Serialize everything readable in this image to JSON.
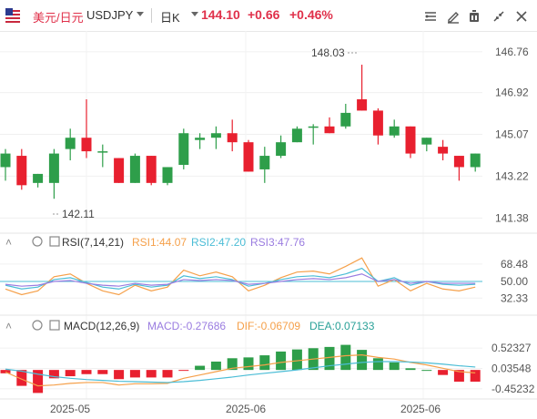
{
  "header": {
    "pair_cn": "美元/日元",
    "pair_code": "USDJPY",
    "timeframe": "日K",
    "price": "144.10",
    "change": "+0.66",
    "change_pct": "+0.46%"
  },
  "toolbar": {
    "icons": [
      "indicator-toggle-icon",
      "draw-icon",
      "timer-icon",
      "settings-icon",
      "collapse-icon",
      "close-icon"
    ]
  },
  "chart_data": [
    {
      "type": "candlestick",
      "title": "USDJPY 日K",
      "price_axis_labels": [
        "146.76",
        "146.92",
        "145.07",
        "143.22",
        "141.38"
      ],
      "annotations": [
        "148.03",
        "142.11"
      ],
      "x_tick_labels": [
        "2025-05",
        "2025-06",
        "2025-06"
      ],
      "ylim": [
        140.9,
        149.2
      ],
      "candles": [
        {
          "o": 143.5,
          "h": 144.3,
          "l": 142.9,
          "c": 144.1
        },
        {
          "o": 144.0,
          "h": 144.3,
          "l": 142.5,
          "c": 142.7
        },
        {
          "o": 142.8,
          "h": 143.2,
          "l": 142.6,
          "c": 143.2
        },
        {
          "o": 142.8,
          "h": 144.3,
          "l": 142.1,
          "c": 144.1
        },
        {
          "o": 144.3,
          "h": 145.2,
          "l": 143.8,
          "c": 144.8
        },
        {
          "o": 144.8,
          "h": 146.5,
          "l": 143.9,
          "c": 144.2
        },
        {
          "o": 144.2,
          "h": 144.5,
          "l": 143.5,
          "c": 144.2
        },
        {
          "o": 143.9,
          "h": 143.9,
          "l": 142.8,
          "c": 142.8
        },
        {
          "o": 142.8,
          "h": 144.1,
          "l": 142.8,
          "c": 144.0
        },
        {
          "o": 144.0,
          "h": 144.0,
          "l": 142.7,
          "c": 142.8
        },
        {
          "o": 142.8,
          "h": 143.5,
          "l": 142.7,
          "c": 143.5
        },
        {
          "o": 143.6,
          "h": 145.2,
          "l": 143.4,
          "c": 145.0
        },
        {
          "o": 144.7,
          "h": 145.0,
          "l": 144.3,
          "c": 144.8
        },
        {
          "o": 144.8,
          "h": 145.3,
          "l": 144.3,
          "c": 145.0
        },
        {
          "o": 145.0,
          "h": 145.6,
          "l": 144.2,
          "c": 144.6
        },
        {
          "o": 144.6,
          "h": 144.7,
          "l": 143.3,
          "c": 143.3
        },
        {
          "o": 143.4,
          "h": 144.4,
          "l": 142.8,
          "c": 144.0
        },
        {
          "o": 144.0,
          "h": 144.9,
          "l": 143.9,
          "c": 144.6
        },
        {
          "o": 144.6,
          "h": 145.3,
          "l": 144.6,
          "c": 145.2
        },
        {
          "o": 145.3,
          "h": 145.4,
          "l": 144.5,
          "c": 145.3
        },
        {
          "o": 145.3,
          "h": 145.7,
          "l": 145.0,
          "c": 145.0
        },
        {
          "o": 145.3,
          "h": 146.3,
          "l": 145.2,
          "c": 145.9
        },
        {
          "o": 146.5,
          "h": 148.03,
          "l": 146.0,
          "c": 146.0
        },
        {
          "o": 146.0,
          "h": 146.1,
          "l": 144.5,
          "c": 144.9
        },
        {
          "o": 144.9,
          "h": 145.6,
          "l": 144.8,
          "c": 145.3
        },
        {
          "o": 145.3,
          "h": 145.3,
          "l": 143.9,
          "c": 144.1
        },
        {
          "o": 144.5,
          "h": 144.8,
          "l": 144.2,
          "c": 144.8
        },
        {
          "o": 144.4,
          "h": 144.7,
          "l": 143.8,
          "c": 144.1
        },
        {
          "o": 144.0,
          "h": 144.0,
          "l": 142.9,
          "c": 143.5
        },
        {
          "o": 143.5,
          "h": 144.1,
          "l": 143.3,
          "c": 144.1
        }
      ]
    },
    {
      "type": "line",
      "title": "RSI(7,14,21)",
      "legend": [
        "RSI1:44.07",
        "RSI2:47.20",
        "RSI3:47.76"
      ],
      "axis_labels": [
        "68.48",
        "50.00",
        "32.33"
      ],
      "ylim": [
        20,
        80
      ],
      "series": [
        {
          "name": "RSI1",
          "color": "#f5a04a",
          "values": [
            42,
            36,
            40,
            55,
            58,
            48,
            40,
            36,
            46,
            40,
            44,
            62,
            56,
            60,
            55,
            40,
            46,
            54,
            60,
            61,
            58,
            66,
            75,
            45,
            52,
            40,
            48,
            42,
            40,
            44
          ]
        },
        {
          "name": "RSI2",
          "color": "#4bbdd6",
          "values": [
            46,
            42,
            44,
            52,
            54,
            49,
            44,
            42,
            47,
            44,
            46,
            56,
            53,
            55,
            52,
            45,
            48,
            52,
            55,
            56,
            54,
            58,
            64,
            50,
            54,
            46,
            50,
            47,
            46,
            47
          ]
        },
        {
          "name": "RSI3",
          "color": "#9a7ce0",
          "values": [
            47,
            45,
            46,
            50,
            51,
            48,
            46,
            45,
            48,
            46,
            47,
            52,
            51,
            52,
            51,
            47,
            48,
            50,
            52,
            53,
            52,
            54,
            58,
            50,
            52,
            48,
            50,
            48,
            48,
            48
          ]
        }
      ]
    },
    {
      "type": "bar",
      "title": "MACD(12,26,9)",
      "legend": [
        "MACD:-0.27686",
        "DIF:-0.06709",
        "DEA:0.07133"
      ],
      "axis_labels": [
        "0.52327",
        "0.03548",
        "-0.45232"
      ],
      "ylim": [
        -0.65,
        0.7
      ],
      "histogram": [
        -0.08,
        -0.38,
        -0.55,
        -0.2,
        -0.15,
        -0.1,
        -0.1,
        -0.22,
        -0.18,
        -0.18,
        -0.18,
        -0.02,
        0.1,
        0.2,
        0.28,
        0.3,
        0.35,
        0.44,
        0.49,
        0.52,
        0.55,
        0.6,
        0.48,
        0.28,
        0.18,
        0.04,
        0.0,
        -0.12,
        -0.28,
        -0.28
      ],
      "series": [
        {
          "name": "DIF",
          "color": "#f5a04a",
          "values": [
            -0.05,
            -0.22,
            -0.38,
            -0.36,
            -0.32,
            -0.3,
            -0.3,
            -0.36,
            -0.33,
            -0.33,
            -0.32,
            -0.2,
            -0.12,
            -0.04,
            0.04,
            0.08,
            0.12,
            0.18,
            0.22,
            0.26,
            0.3,
            0.34,
            0.36,
            0.3,
            0.26,
            0.18,
            0.12,
            0.04,
            -0.04,
            -0.07
          ]
        },
        {
          "name": "DEA",
          "color": "#4bbdd6",
          "values": [
            0.02,
            -0.03,
            -0.1,
            -0.16,
            -0.2,
            -0.23,
            -0.25,
            -0.27,
            -0.28,
            -0.29,
            -0.3,
            -0.28,
            -0.25,
            -0.21,
            -0.17,
            -0.12,
            -0.08,
            -0.04,
            0.0,
            0.05,
            0.1,
            0.14,
            0.18,
            0.2,
            0.2,
            0.19,
            0.17,
            0.14,
            0.1,
            0.07
          ]
        }
      ]
    }
  ]
}
